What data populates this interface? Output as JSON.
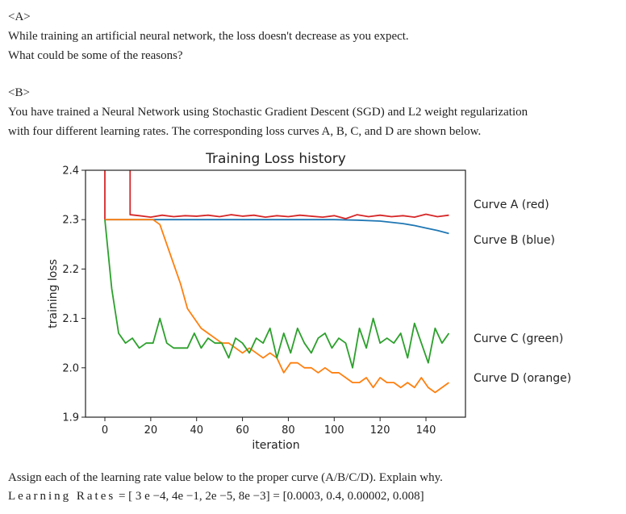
{
  "question_a": {
    "tag": "<A>",
    "lines": [
      "While training an artificial neural network, the loss doesn't decrease as you expect.",
      "What could be some of the reasons?"
    ]
  },
  "question_b": {
    "tag": "<B>",
    "lines": [
      "You have trained a Neural Network using Stochastic Gradient Descent (SGD) and L2 weight regularization",
      "with four different learning rates. The corresponding loss curves A, B, C, and D are shown below."
    ],
    "assign": "Assign each of the learning rate value below to the proper curve (A/B/C/D). Explain why.",
    "rates_label": "Learning Rates",
    "rates_expr": "= [ 3 e −4, 4e −1, 2e −5, 8e −3] = [0.0003, 0.4, 0.00002, 0.008]"
  },
  "chart_data": {
    "type": "line",
    "title": "Training Loss history",
    "xlabel": "iteration",
    "ylabel": "training loss",
    "xlim": [
      -5,
      155
    ],
    "ylim": [
      1.9,
      2.4
    ],
    "xticks": [
      "0",
      "20",
      "40",
      "60",
      "80",
      "100",
      "120",
      "140"
    ],
    "yticks": [
      "1.9",
      "2.0",
      "2.1",
      "2.2",
      "2.3",
      "2.4"
    ],
    "grid": false,
    "legend": "right",
    "series": [
      {
        "name": "Curve A (red)",
        "color": "#d62728",
        "x": [
          0,
          0,
          11,
          11,
          15,
          20,
          25,
          30,
          35,
          40,
          45,
          50,
          55,
          60,
          65,
          70,
          75,
          80,
          85,
          90,
          95,
          100,
          105,
          110,
          115,
          120,
          125,
          130,
          135,
          140,
          145,
          150
        ],
        "y": [
          2.3,
          2.45,
          2.45,
          2.31,
          2.308,
          2.305,
          2.309,
          2.306,
          2.308,
          2.307,
          2.309,
          2.306,
          2.31,
          2.307,
          2.309,
          2.305,
          2.308,
          2.306,
          2.309,
          2.307,
          2.305,
          2.308,
          2.302,
          2.31,
          2.306,
          2.309,
          2.306,
          2.308,
          2.305,
          2.311,
          2.306,
          2.309
        ]
      },
      {
        "name": "Curve B (blue)",
        "color": "#1f77b4",
        "x": [
          0,
          20,
          40,
          60,
          80,
          100,
          110,
          120,
          130,
          135,
          140,
          145,
          150
        ],
        "y": [
          2.3,
          2.3,
          2.3,
          2.3,
          2.3,
          2.3,
          2.299,
          2.297,
          2.292,
          2.288,
          2.283,
          2.278,
          2.272
        ]
      },
      {
        "name": "Curve C (green)",
        "color": "#2ca02c",
        "x": [
          0,
          3,
          6,
          9,
          12,
          15,
          18,
          21,
          24,
          27,
          30,
          33,
          36,
          39,
          42,
          45,
          48,
          51,
          54,
          57,
          60,
          63,
          66,
          69,
          72,
          75,
          78,
          81,
          84,
          87,
          90,
          93,
          96,
          99,
          102,
          105,
          108,
          111,
          114,
          117,
          120,
          123,
          126,
          129,
          132,
          135,
          138,
          141,
          144,
          147,
          150
        ],
        "y": [
          2.3,
          2.16,
          2.07,
          2.05,
          2.06,
          2.04,
          2.05,
          2.05,
          2.1,
          2.05,
          2.04,
          2.04,
          2.04,
          2.07,
          2.04,
          2.06,
          2.05,
          2.05,
          2.02,
          2.06,
          2.05,
          2.03,
          2.06,
          2.05,
          2.08,
          2.02,
          2.07,
          2.03,
          2.08,
          2.05,
          2.03,
          2.06,
          2.07,
          2.04,
          2.06,
          2.05,
          2.0,
          2.08,
          2.04,
          2.1,
          2.05,
          2.06,
          2.05,
          2.07,
          2.02,
          2.09,
          2.05,
          2.01,
          2.08,
          2.05,
          2.07
        ]
      },
      {
        "name": "Curve D (orange)",
        "color": "#ff7f0e",
        "x": [
          0,
          3,
          6,
          9,
          12,
          15,
          18,
          21,
          24,
          27,
          30,
          33,
          36,
          39,
          42,
          45,
          48,
          51,
          54,
          57,
          60,
          63,
          66,
          69,
          72,
          75,
          78,
          81,
          84,
          87,
          90,
          93,
          96,
          99,
          102,
          105,
          108,
          111,
          114,
          117,
          120,
          123,
          126,
          129,
          132,
          135,
          138,
          141,
          144,
          147,
          150
        ],
        "y": [
          2.3,
          2.3,
          2.3,
          2.3,
          2.3,
          2.3,
          2.3,
          2.3,
          2.29,
          2.25,
          2.21,
          2.17,
          2.12,
          2.1,
          2.08,
          2.07,
          2.06,
          2.05,
          2.05,
          2.04,
          2.03,
          2.04,
          2.03,
          2.02,
          2.03,
          2.02,
          1.99,
          2.01,
          2.01,
          2.0,
          2.0,
          1.99,
          2.0,
          1.99,
          1.99,
          1.98,
          1.97,
          1.97,
          1.98,
          1.96,
          1.98,
          1.97,
          1.97,
          1.96,
          1.97,
          1.96,
          1.98,
          1.96,
          1.95,
          1.96,
          1.97
        ]
      }
    ]
  }
}
